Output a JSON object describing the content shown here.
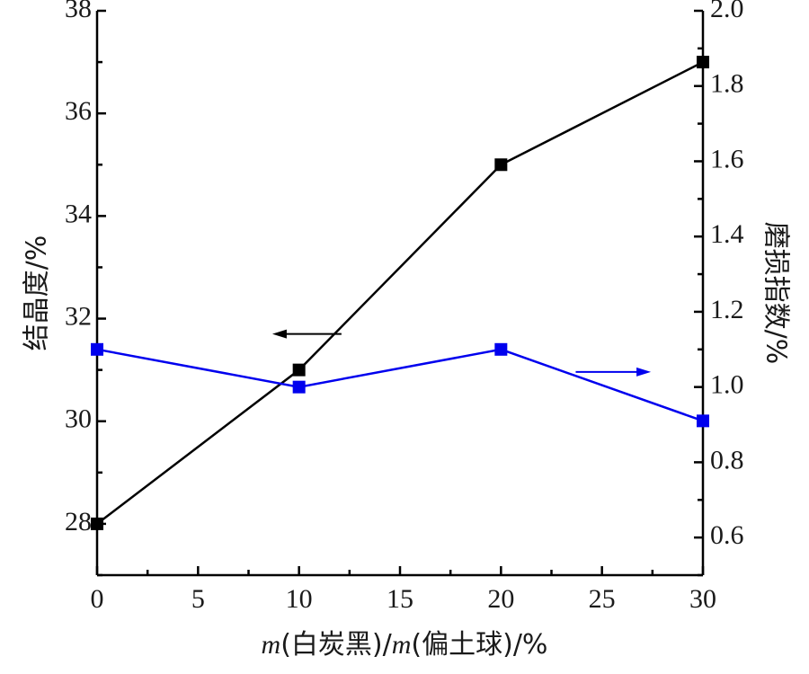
{
  "chart_data": {
    "type": "line",
    "x": [
      0,
      10,
      20,
      30
    ],
    "xlabel_prefix": "m",
    "xlabel_mid": "(白炭黑)/",
    "xlabel_prefix2": "m",
    "xlabel_suffix": "(偏土球)/%",
    "xlim": [
      0,
      30
    ],
    "xticks": [
      "0",
      "5",
      "10",
      "15",
      "20",
      "25",
      "30"
    ],
    "ylabel_left": "结晶度/%",
    "ylim_left": [
      27,
      38
    ],
    "yticks_left": [
      "28",
      "30",
      "32",
      "34",
      "36",
      "38"
    ],
    "ylabel_right": "磨损指数/%",
    "ylim_right": [
      0.5,
      2.0
    ],
    "yticks_right": [
      "0.6",
      "0.8",
      "1.0",
      "1.2",
      "1.4",
      "1.6",
      "1.8",
      "2.0"
    ],
    "grid": false,
    "series": [
      {
        "axis": "left",
        "color": "#000000",
        "marker": "square",
        "values": [
          28,
          31,
          35,
          37
        ]
      },
      {
        "axis": "right",
        "color": "#0000ee",
        "marker": "square",
        "values": [
          1.1,
          1.0,
          1.1,
          0.91
        ]
      }
    ]
  }
}
